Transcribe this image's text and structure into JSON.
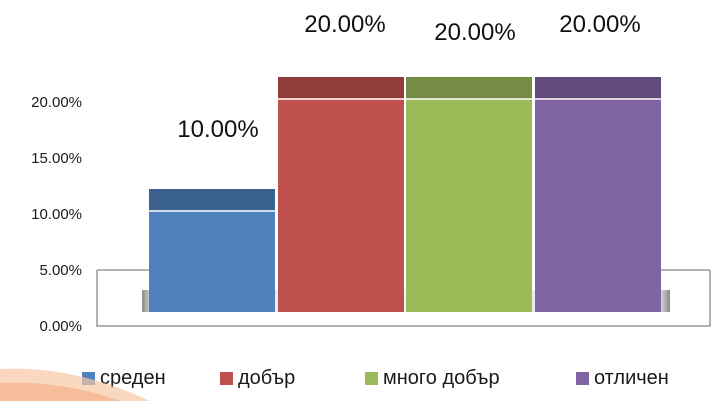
{
  "chart_data": {
    "type": "bar",
    "title": "",
    "xlabel": "",
    "ylabel": "",
    "ylim": [
      0,
      0.2
    ],
    "y_ticks": [
      "0.00%",
      "5.00%",
      "10.00%",
      "15.00%",
      "20.00%"
    ],
    "series": [
      {
        "name": "среден",
        "value": 0.1,
        "label": "10.00%",
        "color": "#4f81bd"
      },
      {
        "name": "добър",
        "value": 0.2,
        "label": "20.00%",
        "color": "#c0504d"
      },
      {
        "name": "много добър",
        "value": 0.2,
        "label": "20.00%",
        "color": "#9bbb59"
      },
      {
        "name": "отличен",
        "value": 0.2,
        "label": "20.00%",
        "color": "#8064a2"
      }
    ],
    "legend_position": "bottom",
    "grid": false
  }
}
